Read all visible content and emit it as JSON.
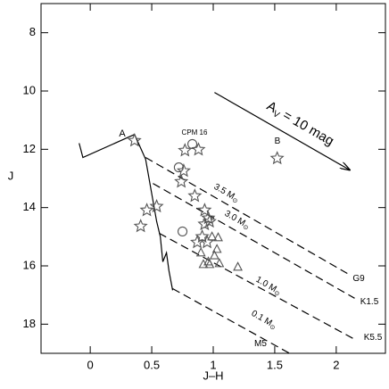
{
  "chart_data": {
    "type": "scatter",
    "x_label": "J–H",
    "y_label": "J",
    "xlim": [
      -0.4,
      2.4
    ],
    "ylim": [
      19,
      7
    ],
    "xticks": [
      0,
      0.5,
      1,
      1.5,
      2
    ],
    "yticks": [
      8,
      10,
      12,
      14,
      16,
      18
    ],
    "y_inverted": true,
    "series": [
      {
        "name": "stars",
        "marker": "star",
        "color": "#555555",
        "x": [
          0.36,
          0.77,
          0.88,
          1.52,
          0.76,
          0.74,
          0.85,
          0.54,
          0.46,
          0.41,
          0.93,
          0.96,
          0.93,
          0.97,
          0.91,
          0.95,
          0.87
        ],
        "values": [
          11.7,
          12.04,
          12.01,
          12.31,
          12.74,
          13.11,
          13.6,
          13.96,
          14.09,
          14.64,
          14.09,
          14.36,
          14.57,
          14.48,
          15.0,
          15.19,
          15.19
        ]
      },
      {
        "name": "circles",
        "marker": "circle",
        "color": "#555555",
        "x": [
          0.72,
          0.83,
          0.75
        ],
        "values": [
          12.62,
          11.82,
          14.82
        ]
      },
      {
        "name": "triangles",
        "marker": "triangle",
        "color": "#555555",
        "x": [
          0.99,
          1.04,
          1.03,
          1.01,
          0.96,
          0.92,
          0.97,
          1.05,
          1.2,
          0.9
        ],
        "values": [
          15.0,
          15.03,
          15.43,
          15.65,
          15.86,
          15.95,
          15.95,
          15.92,
          16.04,
          15.55
        ]
      }
    ],
    "lines": [
      {
        "style": "solid",
        "x": [
          -0.09,
          -0.06,
          0.36,
          0.45,
          0.54,
          0.57,
          0.59,
          0.62,
          0.64,
          0.67
        ],
        "values": [
          11.79,
          12.28,
          11.49,
          12.34,
          14.48,
          15.0,
          15.86,
          15.55,
          16.17,
          16.84
        ]
      },
      {
        "style": "dashed",
        "x": [
          0.45,
          2.09
        ],
        "values": [
          12.28,
          16.26
        ]
      },
      {
        "style": "dashed",
        "x": [
          0.51,
          2.15
        ],
        "values": [
          13.17,
          17.11
        ]
      },
      {
        "style": "dashed",
        "x": [
          0.56,
          2.15
        ],
        "values": [
          14.88,
          18.52
        ]
      },
      {
        "style": "dashed",
        "x": [
          0.67,
          1.62
        ],
        "values": [
          16.78,
          19.0
        ]
      }
    ],
    "arrow": {
      "x": [
        1.01,
        2.11
      ],
      "values": [
        10.05,
        12.71
      ],
      "label": {
        "main": "A",
        "sub": "V",
        "rest": " = 10 mag"
      }
    },
    "annotations": [
      {
        "text": "A"
      },
      {
        "text": "CPM 16"
      },
      {
        "text": "B"
      },
      {
        "text": "3.5 M",
        "sub": "⊙"
      },
      {
        "text": "3.0 M",
        "sub": "⊙"
      },
      {
        "text": "1.0 M",
        "sub": "⊙"
      },
      {
        "text": "0.1 M",
        "sub": "⊙"
      },
      {
        "text": "G9"
      },
      {
        "text": "K1.5"
      },
      {
        "text": "K5.5"
      },
      {
        "text": "M5"
      }
    ]
  }
}
